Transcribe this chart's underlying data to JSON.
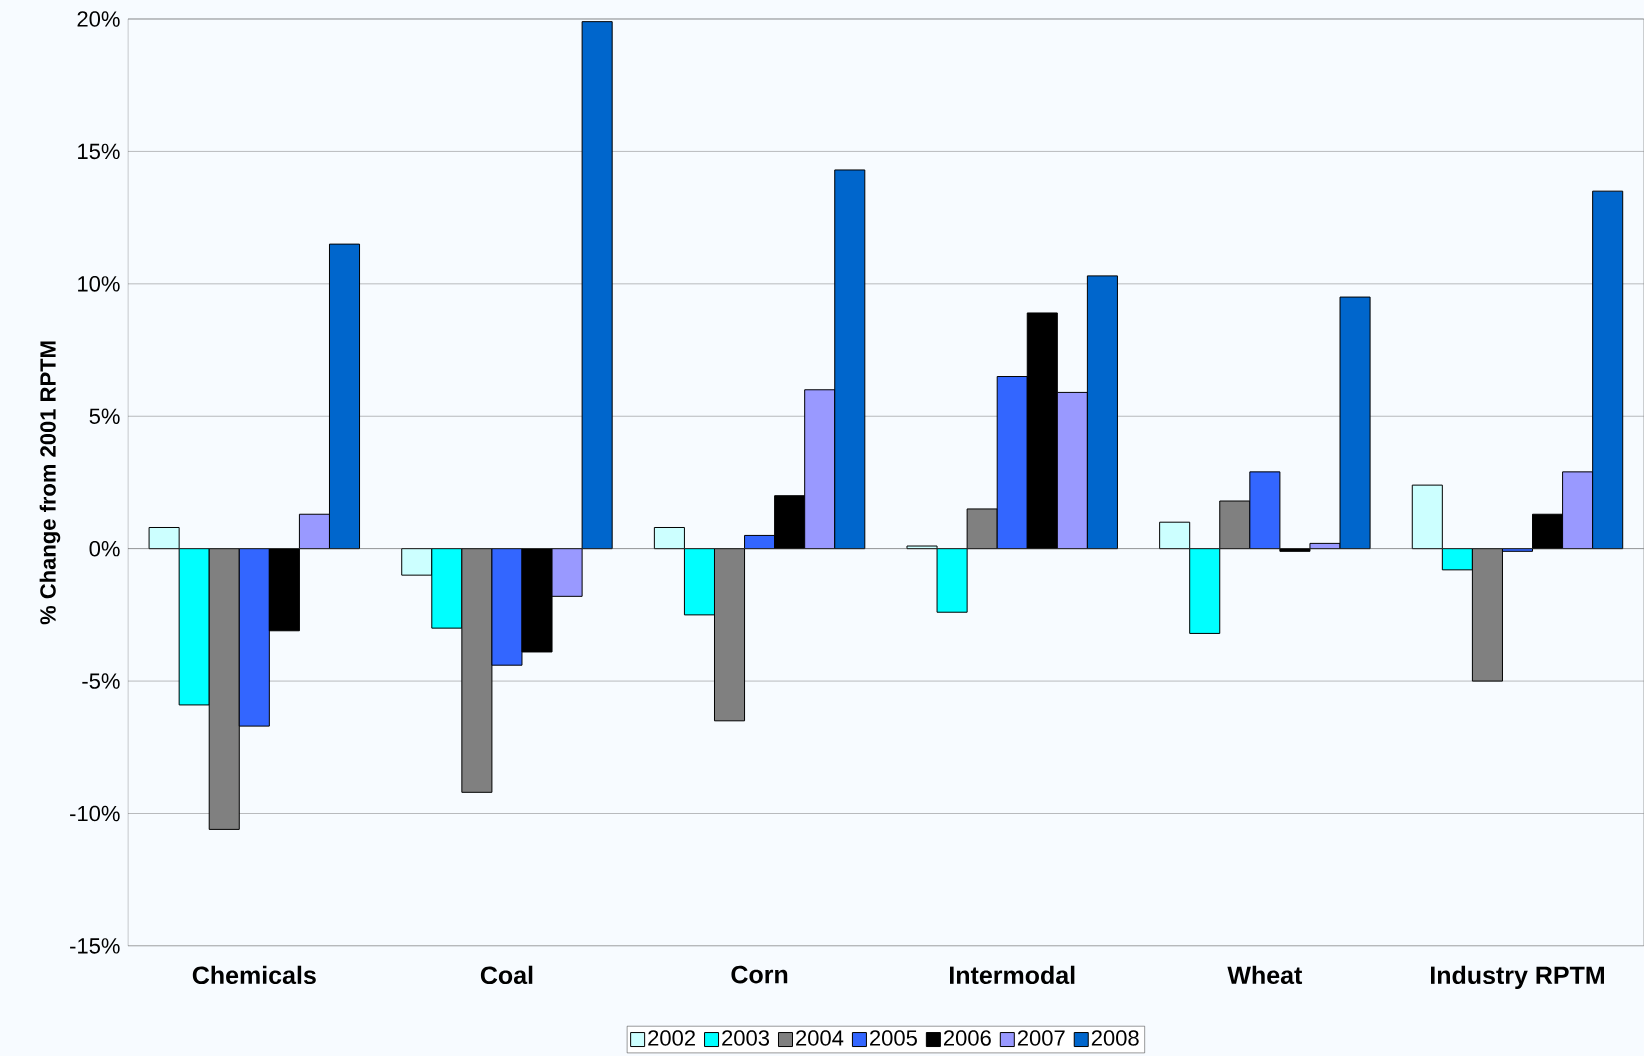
{
  "chart_data": {
    "type": "bar",
    "ylabel": "% Change from 2001 RPTM",
    "categories": [
      "Chemicals",
      "Coal",
      "Corn",
      "Intermodal",
      "Wheat",
      "Industry RPTM"
    ],
    "series": [
      {
        "name": "2002",
        "color": "#ccffff",
        "values": [
          0.8,
          -1.0,
          0.8,
          0.1,
          1.0,
          2.4
        ]
      },
      {
        "name": "2003",
        "color": "#00ffff",
        "values": [
          -5.9,
          -3.0,
          -2.5,
          -2.4,
          -3.2,
          -0.8
        ]
      },
      {
        "name": "2004",
        "color": "#808080",
        "values": [
          -10.6,
          -9.2,
          -6.5,
          1.5,
          1.8,
          -5.0
        ]
      },
      {
        "name": "2005",
        "color": "#3366ff",
        "values": [
          -6.7,
          -4.4,
          0.5,
          6.5,
          2.9,
          -0.1
        ]
      },
      {
        "name": "2006",
        "color": "#000000",
        "values": [
          -3.1,
          -3.9,
          2.0,
          8.9,
          -0.1,
          1.3
        ]
      },
      {
        "name": "2007",
        "color": "#9999ff",
        "values": [
          1.3,
          -1.8,
          6.0,
          5.9,
          0.2,
          2.9
        ]
      },
      {
        "name": "2008",
        "color": "#0066cc",
        "values": [
          11.5,
          19.9,
          14.3,
          10.3,
          9.5,
          13.5
        ]
      }
    ],
    "ylim": [
      -15,
      20
    ],
    "yticks": [
      {
        "value": -15,
        "label": "-15%"
      },
      {
        "value": -10,
        "label": "-10%"
      },
      {
        "value": -5,
        "label": "-5%"
      },
      {
        "value": 0,
        "label": "0%"
      },
      {
        "value": 5,
        "label": "5%"
      },
      {
        "value": 10,
        "label": "10%"
      },
      {
        "value": 15,
        "label": "15%"
      },
      {
        "value": 20,
        "label": "20%"
      }
    ],
    "grid": "y",
    "legend": "bottom"
  }
}
